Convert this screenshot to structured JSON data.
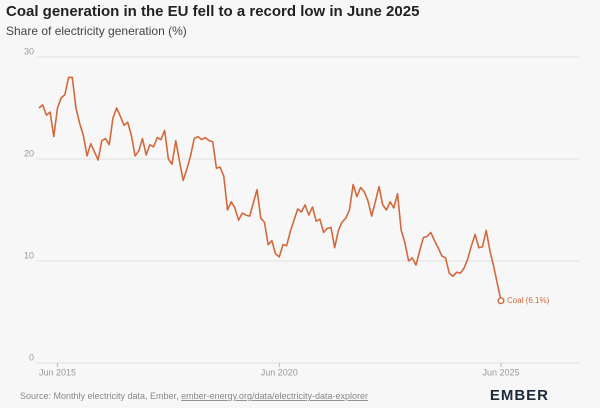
{
  "chart_data": {
    "type": "line",
    "title": "Coal generation in the EU fell to a record low in June 2025",
    "subtitle": "Share of electricity generation (%)",
    "x": [
      "2015-01",
      "2015-02",
      "2015-03",
      "2015-04",
      "2015-05",
      "2015-06",
      "2015-07",
      "2015-08",
      "2015-09",
      "2015-10",
      "2015-11",
      "2015-12",
      "2016-01",
      "2016-02",
      "2016-03",
      "2016-04",
      "2016-05",
      "2016-06",
      "2016-07",
      "2016-08",
      "2016-09",
      "2016-10",
      "2016-11",
      "2016-12",
      "2017-01",
      "2017-02",
      "2017-03",
      "2017-04",
      "2017-05",
      "2017-06",
      "2017-07",
      "2017-08",
      "2017-09",
      "2017-10",
      "2017-11",
      "2017-12",
      "2018-01",
      "2018-02",
      "2018-03",
      "2018-04",
      "2018-05",
      "2018-06",
      "2018-07",
      "2018-08",
      "2018-09",
      "2018-10",
      "2018-11",
      "2018-12",
      "2019-01",
      "2019-02",
      "2019-03",
      "2019-04",
      "2019-05",
      "2019-06",
      "2019-07",
      "2019-08",
      "2019-09",
      "2019-10",
      "2019-11",
      "2019-12",
      "2020-01",
      "2020-02",
      "2020-03",
      "2020-04",
      "2020-05",
      "2020-06",
      "2020-07",
      "2020-08",
      "2020-09",
      "2020-10",
      "2020-11",
      "2020-12",
      "2021-01",
      "2021-02",
      "2021-03",
      "2021-04",
      "2021-05",
      "2021-06",
      "2021-07",
      "2021-08",
      "2021-09",
      "2021-10",
      "2021-11",
      "2021-12",
      "2022-01",
      "2022-02",
      "2022-03",
      "2022-04",
      "2022-05",
      "2022-06",
      "2022-07",
      "2022-08",
      "2022-09",
      "2022-10",
      "2022-11",
      "2022-12",
      "2023-01",
      "2023-02",
      "2023-03",
      "2023-04",
      "2023-05",
      "2023-06",
      "2023-07",
      "2023-08",
      "2023-09",
      "2023-10",
      "2023-11",
      "2023-12",
      "2024-01",
      "2024-02",
      "2024-03",
      "2024-04",
      "2024-05",
      "2024-06",
      "2024-07",
      "2024-08",
      "2024-09",
      "2024-10",
      "2024-11",
      "2024-12",
      "2025-01",
      "2025-02",
      "2025-03",
      "2025-04",
      "2025-05",
      "2025-06"
    ],
    "series": [
      {
        "name": "Coal",
        "color": "#d2693b",
        "values": [
          25,
          25.3,
          24.3,
          24.6,
          22.2,
          25,
          26,
          26.3,
          28,
          28,
          25,
          23.5,
          22.3,
          20.3,
          21.5,
          20.7,
          19.9,
          21.8,
          22,
          21.4,
          24,
          25,
          24.2,
          23.3,
          23.6,
          22.3,
          20.3,
          20.8,
          22,
          20.4,
          21.4,
          21.2,
          22.1,
          21.9,
          22.8,
          20,
          19.5,
          21.8,
          19.8,
          17.9,
          19,
          20.3,
          22,
          22.2,
          21.9,
          22.1,
          21.8,
          21.7,
          19.1,
          19.2,
          18.3,
          15,
          15.8,
          15.2,
          14,
          14.7,
          14.5,
          14.4,
          15.7,
          17,
          14.2,
          13.8,
          11.6,
          12,
          10.7,
          10.4,
          11.6,
          11.5,
          12.9,
          14,
          15.1,
          14.8,
          15.5,
          14.5,
          15.3,
          13.9,
          14.1,
          12.8,
          13.2,
          13.3,
          11.3,
          13,
          13.8,
          14.2,
          15,
          17.5,
          16.3,
          17.2,
          16.8,
          15.9,
          14.4,
          15.8,
          17.3,
          15.5,
          15,
          15.8,
          15.2,
          16.6,
          13,
          11.8,
          10,
          10.3,
          9.6,
          11,
          12.3,
          12.4,
          12.8,
          12,
          11.3,
          10.5,
          10.3,
          8.8,
          8.5,
          8.9,
          8.8,
          9.3,
          10.2,
          11.5,
          12.6,
          11.3,
          11.4,
          13,
          11,
          9.5,
          7.8,
          6.1
        ]
      }
    ],
    "end_label": "Coal (6.1%)",
    "ylim": [
      0,
      30
    ],
    "yticks": [
      0,
      10,
      20,
      30
    ],
    "xticks": [
      {
        "value": "2015-06",
        "label": "Jun 2015"
      },
      {
        "value": "2020-06",
        "label": "Jun 2020"
      },
      {
        "value": "2025-06",
        "label": "Jun 2025"
      }
    ],
    "grid": true,
    "source": "Source: Monthly electricity data, Ember, ",
    "source_link": "ember-energy.org/data/electricity-data-explorer",
    "brand": "EMBER"
  }
}
